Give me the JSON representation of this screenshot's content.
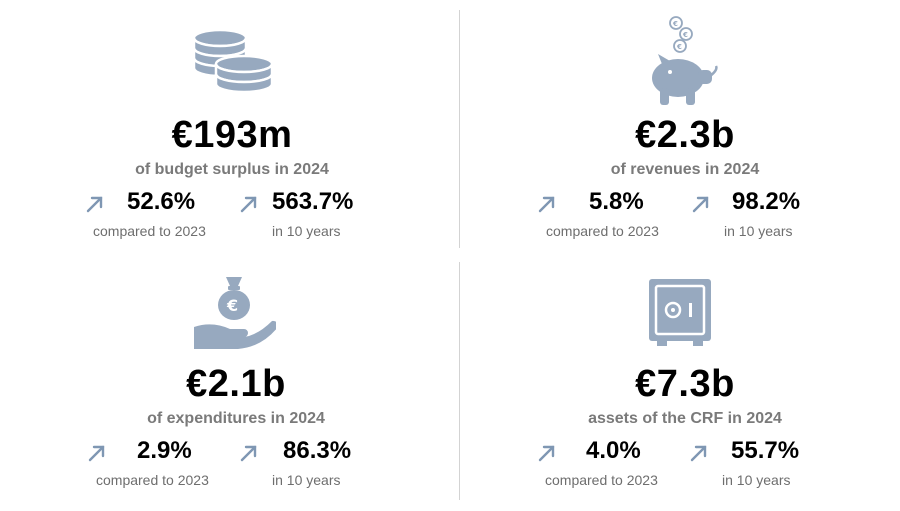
{
  "colors": {
    "icon": "#97a9bf",
    "arrow": "#7f97b3",
    "divider": "#d3d3d3"
  },
  "cards": [
    {
      "icon": "coins-icon",
      "value": "€193m",
      "subtitle": "of budget surplus in 2024",
      "stats": [
        {
          "percent": "52.6%",
          "caption": "compared to 2023"
        },
        {
          "percent": "563.7%",
          "caption": "in 10 years"
        }
      ]
    },
    {
      "icon": "piggy-bank-icon",
      "value": "€2.3b",
      "subtitle": "of revenues in 2024",
      "stats": [
        {
          "percent": "5.8%",
          "caption": "compared to 2023"
        },
        {
          "percent": "98.2%",
          "caption": "in 10 years"
        }
      ]
    },
    {
      "icon": "money-bag-hand-icon",
      "value": "€2.1b",
      "subtitle": "of expenditures in 2024",
      "stats": [
        {
          "percent": "2.9%",
          "caption": "compared to 2023"
        },
        {
          "percent": "86.3%",
          "caption": "in 10 years"
        }
      ]
    },
    {
      "icon": "safe-icon",
      "value": "€7.3b",
      "subtitle": "assets of the CRF in 2024",
      "stats": [
        {
          "percent": "4.0%",
          "caption": "compared to 2023"
        },
        {
          "percent": "55.7%",
          "caption": "in 10 years"
        }
      ]
    }
  ]
}
